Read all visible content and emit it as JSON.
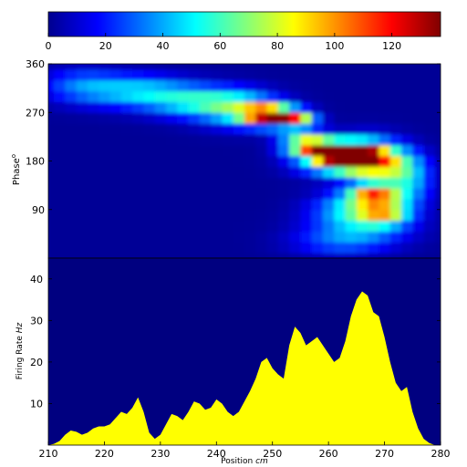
{
  "chart_data": [
    {
      "type": "heatmap",
      "title": "",
      "xlabel": "",
      "ylabel": "Phase",
      "ylabel_suffix": "o",
      "xlim": [
        210,
        280
      ],
      "ylim": [
        0,
        360
      ],
      "y_ticks": [
        90,
        180,
        270,
        360
      ],
      "colorbar": {
        "range": [
          0,
          137
        ],
        "ticks": [
          0,
          20,
          40,
          60,
          80,
          100,
          120
        ],
        "colormap": "jet"
      },
      "x_grid": [
        210,
        212,
        214,
        216,
        218,
        220,
        222,
        224,
        226,
        228,
        230,
        232,
        234,
        236,
        238,
        240,
        242,
        244,
        246,
        248,
        250,
        252,
        254,
        256,
        258,
        260,
        262,
        264,
        266,
        268,
        270,
        272,
        274,
        276,
        278,
        280
      ],
      "y_grid": [
        0,
        20,
        40,
        60,
        80,
        100,
        120,
        140,
        160,
        180,
        200,
        220,
        240,
        260,
        280,
        300,
        320,
        340,
        360
      ],
      "background_value": 3,
      "blobs": [
        {
          "x": 216,
          "y": 320,
          "sx": 5,
          "sy": 22,
          "value": 28
        },
        {
          "x": 226,
          "y": 310,
          "sx": 6,
          "sy": 20,
          "value": 38
        },
        {
          "x": 236,
          "y": 292,
          "sx": 6,
          "sy": 20,
          "value": 42
        },
        {
          "x": 244,
          "y": 278,
          "sx": 5,
          "sy": 22,
          "value": 48
        },
        {
          "x": 249,
          "y": 266,
          "sx": 3,
          "sy": 13,
          "value": 110
        },
        {
          "x": 254,
          "y": 258,
          "sx": 2.5,
          "sy": 11,
          "value": 88
        },
        {
          "x": 256,
          "y": 212,
          "sx": 3,
          "sy": 15,
          "value": 85
        },
        {
          "x": 260,
          "y": 198,
          "sx": 2.5,
          "sy": 11,
          "value": 118
        },
        {
          "x": 264,
          "y": 195,
          "sx": 3,
          "sy": 13,
          "value": 122
        },
        {
          "x": 262,
          "y": 176,
          "sx": 5,
          "sy": 16,
          "value": 60
        },
        {
          "x": 267,
          "y": 190,
          "sx": 4,
          "sy": 24,
          "value": 55
        },
        {
          "x": 270,
          "y": 175,
          "sx": 4,
          "sy": 22,
          "value": 48
        },
        {
          "x": 268,
          "y": 120,
          "sx": 3,
          "sy": 13,
          "value": 85
        },
        {
          "x": 265,
          "y": 95,
          "sx": 5,
          "sy": 20,
          "value": 45
        },
        {
          "x": 270,
          "y": 85,
          "sx": 3,
          "sy": 15,
          "value": 58
        },
        {
          "x": 266,
          "y": 60,
          "sx": 6,
          "sy": 22,
          "value": 32
        },
        {
          "x": 274,
          "y": 140,
          "sx": 3,
          "sy": 30,
          "value": 38
        },
        {
          "x": 262,
          "y": 30,
          "sx": 6,
          "sy": 18,
          "value": 22
        }
      ]
    },
    {
      "type": "area",
      "title": "",
      "xlabel": "Position",
      "xlabel_unit": "cm",
      "ylabel": "Firing Rate",
      "ylabel_unit": "Hz",
      "xlim": [
        210,
        280
      ],
      "ylim": [
        0,
        45
      ],
      "x_ticks": [
        210,
        220,
        230,
        240,
        250,
        260,
        270,
        280
      ],
      "y_ticks": [
        10,
        20,
        30,
        40
      ],
      "background_color": "#000080",
      "fill_color": "#ffff00",
      "series": [
        {
          "x": [
            210,
            211,
            212,
            213,
            214,
            215,
            216,
            217,
            218,
            219,
            220,
            221,
            222,
            223,
            224,
            225,
            226,
            227,
            228,
            229,
            230,
            231,
            232,
            233,
            234,
            235,
            236,
            237,
            238,
            239,
            240,
            241,
            242,
            243,
            244,
            245,
            246,
            247,
            248,
            249,
            250,
            251,
            252,
            253,
            254,
            255,
            256,
            257,
            258,
            259,
            260,
            261,
            262,
            263,
            264,
            265,
            266,
            267,
            268,
            269,
            270,
            271,
            272,
            273,
            274,
            275,
            276,
            277,
            278,
            279,
            280
          ],
          "values": [
            0,
            0.3,
            1,
            2.5,
            3.5,
            3.2,
            2.5,
            3,
            4,
            4.5,
            4.5,
            5,
            6.5,
            8,
            7.5,
            9,
            11.5,
            8,
            3,
            1.5,
            2.5,
            5,
            7.5,
            7,
            6,
            8,
            10.5,
            10,
            8.5,
            9,
            11,
            10,
            8,
            7,
            8,
            10.5,
            13,
            16,
            20,
            21,
            18.5,
            17,
            16,
            24,
            28.5,
            27,
            24,
            25,
            26,
            24,
            22,
            20,
            21,
            25,
            31,
            35,
            37,
            36,
            32,
            31,
            26,
            20,
            15,
            13,
            14,
            8,
            4,
            1.5,
            0.5,
            0,
            0
          ]
        }
      ]
    }
  ]
}
